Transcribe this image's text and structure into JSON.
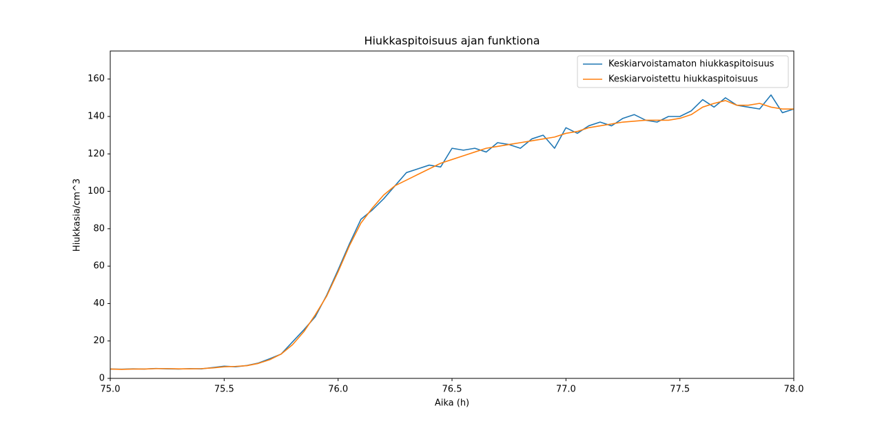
{
  "chart_data": {
    "type": "line",
    "title": "Hiukkaspitoisuus ajan funktiona",
    "x_label": "Aika (h)",
    "y_label": "Hiukkasia/cm^3",
    "x": [
      75.0,
      75.05,
      75.1,
      75.15,
      75.2,
      75.25,
      75.3,
      75.35,
      75.4,
      75.45,
      75.5,
      75.55,
      75.6,
      75.65,
      75.7,
      75.75,
      75.8,
      75.85,
      75.9,
      75.95,
      76.0,
      76.05,
      76.1,
      76.15,
      76.2,
      76.25,
      76.3,
      76.35,
      76.4,
      76.45,
      76.5,
      76.55,
      76.6,
      76.65,
      76.7,
      76.75,
      76.8,
      76.85,
      76.9,
      76.95,
      77.0,
      77.05,
      77.1,
      77.15,
      77.2,
      77.25,
      77.3,
      77.35,
      77.4,
      77.45,
      77.5,
      77.55,
      77.6,
      77.65,
      77.7,
      77.75,
      77.8,
      77.85,
      77.9,
      77.95,
      78.0
    ],
    "series": [
      {
        "name": "Keskiarvoistamaton hiukkaspitoisuus",
        "color": "#1f77b4",
        "values": [
          5,
          4.9,
          5.1,
          5,
          5.3,
          5.1,
          5,
          5.2,
          5.1,
          5.8,
          6.5,
          6.2,
          6.9,
          8.2,
          10.5,
          13,
          19.5,
          26,
          33,
          44.5,
          58,
          72,
          85,
          90,
          96,
          103,
          110,
          112,
          114,
          113,
          123,
          122,
          123,
          121,
          126,
          125,
          123,
          128,
          130,
          123,
          134,
          131,
          135,
          137,
          135,
          139,
          141,
          138,
          137,
          140,
          140,
          143,
          149,
          145,
          150,
          146,
          145,
          144,
          151.5,
          142,
          144
        ]
      },
      {
        "name": "Keskiarvoistettu hiukkaspitoisuus",
        "color": "#ff7f0e",
        "values": [
          5,
          4.8,
          5,
          5,
          5.2,
          5.2,
          5.1,
          5.1,
          5.2,
          5.6,
          6.2,
          6.4,
          6.8,
          8,
          10,
          13,
          18,
          25,
          34,
          44,
          57,
          71,
          83,
          91,
          98,
          103,
          106,
          109,
          112,
          115,
          117,
          119,
          121,
          123,
          124,
          125,
          126,
          127,
          128,
          129,
          131,
          132,
          134,
          135,
          136,
          137,
          137.5,
          138,
          138,
          138,
          139,
          141,
          145,
          147,
          148.5,
          146,
          146,
          147,
          145,
          144,
          144
        ]
      }
    ],
    "xlim": [
      75.0,
      78.0
    ],
    "xticks": [
      {
        "value": 75,
        "label": "75.0"
      },
      75.5,
      {
        "value": 76,
        "label": "76.0"
      },
      76.5,
      {
        "value": 77,
        "label": "77.0"
      },
      77.5,
      {
        "value": 78,
        "label": "78.0"
      }
    ],
    "ylim": [
      0,
      175
    ],
    "yticks": [
      0,
      20,
      40,
      60,
      80,
      100,
      120,
      140,
      160
    ],
    "legend": "upper right"
  }
}
